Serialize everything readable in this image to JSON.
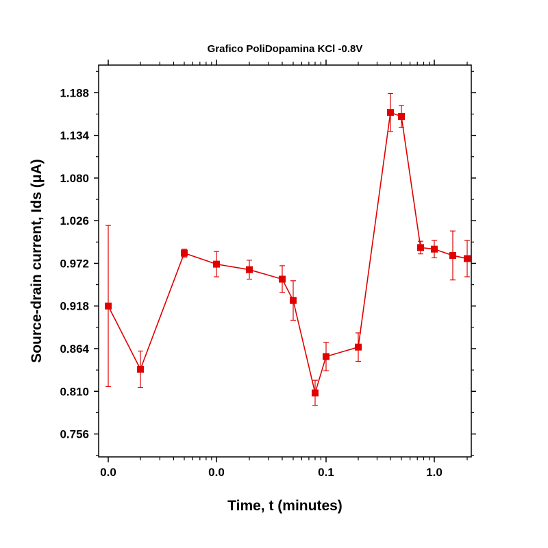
{
  "chart_data": {
    "type": "scatter",
    "title": "Grafico PoliDopamina KCl -0.8V",
    "xlabel": "Time, t (minutes)",
    "ylabel": "Source-drain current, Ids (μA)",
    "x_scale": "log",
    "x_tick_labels": [
      "0.0",
      "0.0",
      "0.1",
      "1.0"
    ],
    "y_ticks": [
      0.756,
      0.81,
      0.864,
      0.918,
      0.972,
      1.026,
      1.08,
      1.134,
      1.188
    ],
    "y_tick_labels": [
      "0.756",
      "0.810",
      "0.864",
      "0.918",
      "0.972",
      "1.026",
      "1.080",
      "1.134",
      "1.188"
    ],
    "ylim": [
      0.727,
      1.223
    ],
    "grid": false,
    "colors": {
      "series": "#e00000",
      "axis": "#000000"
    },
    "series": [
      {
        "marker": "square",
        "points": [
          {
            "x": 0.001,
            "y": 0.918,
            "err": 0.102
          },
          {
            "x": 0.002,
            "y": 0.838,
            "err": 0.023
          },
          {
            "x": 0.005,
            "y": 0.985,
            "err": 0.005
          },
          {
            "x": 0.01,
            "y": 0.971,
            "err": 0.016
          },
          {
            "x": 0.02,
            "y": 0.964,
            "err": 0.012
          },
          {
            "x": 0.04,
            "y": 0.952,
            "err": 0.017
          },
          {
            "x": 0.05,
            "y": 0.925,
            "err": 0.025
          },
          {
            "x": 0.08,
            "y": 0.808,
            "err": 0.016
          },
          {
            "x": 0.1,
            "y": 0.854,
            "err": 0.018
          },
          {
            "x": 0.2,
            "y": 0.866,
            "err": 0.018
          },
          {
            "x": 0.4,
            "y": 1.163,
            "err": 0.024
          },
          {
            "x": 0.5,
            "y": 1.158,
            "err": 0.014
          },
          {
            "x": 0.75,
            "y": 0.992,
            "err": 0.008
          },
          {
            "x": 1.0,
            "y": 0.99,
            "err": 0.011
          },
          {
            "x": 1.5,
            "y": 0.982,
            "err": 0.031
          },
          {
            "x": 2.0,
            "y": 0.978,
            "err": 0.023
          }
        ]
      }
    ]
  }
}
